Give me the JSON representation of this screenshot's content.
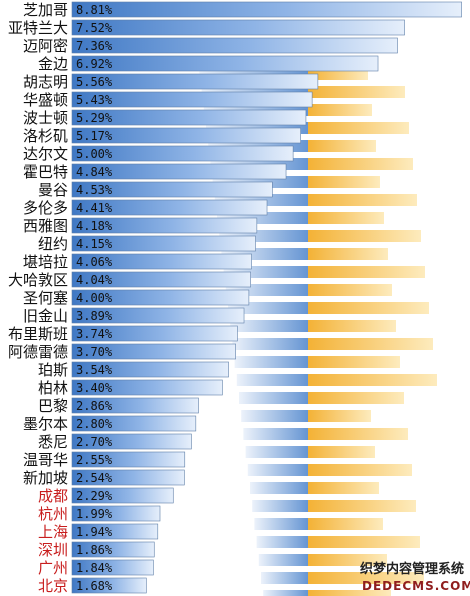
{
  "chart_data": {
    "type": "bar",
    "orientation": "horizontal",
    "title": "",
    "xlabel": "",
    "ylabel": "",
    "xlim": [
      0,
      9
    ],
    "grid": false,
    "legend": "top-right",
    "bar_color": "#5b8fd0",
    "accent_color": "#f2b533",
    "value_suffix": "%",
    "categories": [
      "芝加哥",
      "亚特兰大",
      "迈阿密",
      "金边",
      "胡志明",
      "华盛顿",
      "波士顿",
      "洛杉矶",
      "达尔文",
      "霍巴特",
      "曼谷",
      "多伦多",
      "西雅图",
      "纽约",
      "堪培拉",
      "大哈敦区",
      "圣何塞",
      "旧金山",
      "布里斯班",
      "阿德雷德",
      "珀斯",
      "柏林",
      "巴黎",
      "墨尔本",
      "悉尼",
      "温哥华",
      "新加坡",
      "成都",
      "杭州",
      "上海",
      "深圳",
      "广州",
      "北京"
    ],
    "values": [
      8.81,
      7.52,
      7.36,
      6.92,
      5.56,
      5.43,
      5.29,
      5.17,
      5.0,
      4.84,
      4.53,
      4.41,
      4.18,
      4.15,
      4.06,
      4.04,
      4.0,
      3.89,
      3.74,
      3.7,
      3.54,
      3.4,
      2.86,
      2.8,
      2.7,
      2.55,
      2.54,
      2.29,
      1.99,
      1.94,
      1.86,
      1.84,
      1.68
    ],
    "highlight_categories": [
      "成都",
      "杭州",
      "上海",
      "深圳",
      "广州",
      "北京"
    ]
  },
  "watermark": {
    "title": "织梦内容管理系统",
    "subtitle": "DEDECMS.COM"
  }
}
